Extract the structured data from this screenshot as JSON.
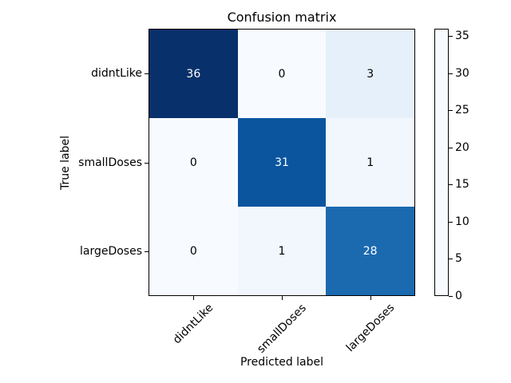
{
  "chart_data": {
    "type": "heatmap",
    "title": "Confusion matrix",
    "xlabel": "Predicted label",
    "ylabel": "True label",
    "x_categories": [
      "didntLike",
      "smallDoses",
      "largeDoses"
    ],
    "y_categories": [
      "didntLike",
      "smallDoses",
      "largeDoses"
    ],
    "matrix": [
      [
        36,
        0,
        3
      ],
      [
        0,
        31,
        1
      ],
      [
        0,
        1,
        28
      ]
    ],
    "vmin": 0,
    "vmax": 36,
    "colorbar_ticks": [
      0,
      5,
      10,
      15,
      20,
      25,
      30,
      35
    ],
    "colormap": "Blues",
    "colormap_stops": [
      {
        "pos": 0.0,
        "color": "#f7fbff"
      },
      {
        "pos": 0.125,
        "color": "#deebf7"
      },
      {
        "pos": 0.25,
        "color": "#c6dbef"
      },
      {
        "pos": 0.375,
        "color": "#9ecae1"
      },
      {
        "pos": 0.5,
        "color": "#6baed6"
      },
      {
        "pos": 0.625,
        "color": "#4292c6"
      },
      {
        "pos": 0.75,
        "color": "#2171b5"
      },
      {
        "pos": 0.875,
        "color": "#08519c"
      },
      {
        "pos": 1.0,
        "color": "#08306b"
      }
    ],
    "grid": false,
    "legend_position": "right-colorbar",
    "background": "#ffffff",
    "cell_text_light": "#ffffff",
    "cell_text_dark": "#000000"
  }
}
